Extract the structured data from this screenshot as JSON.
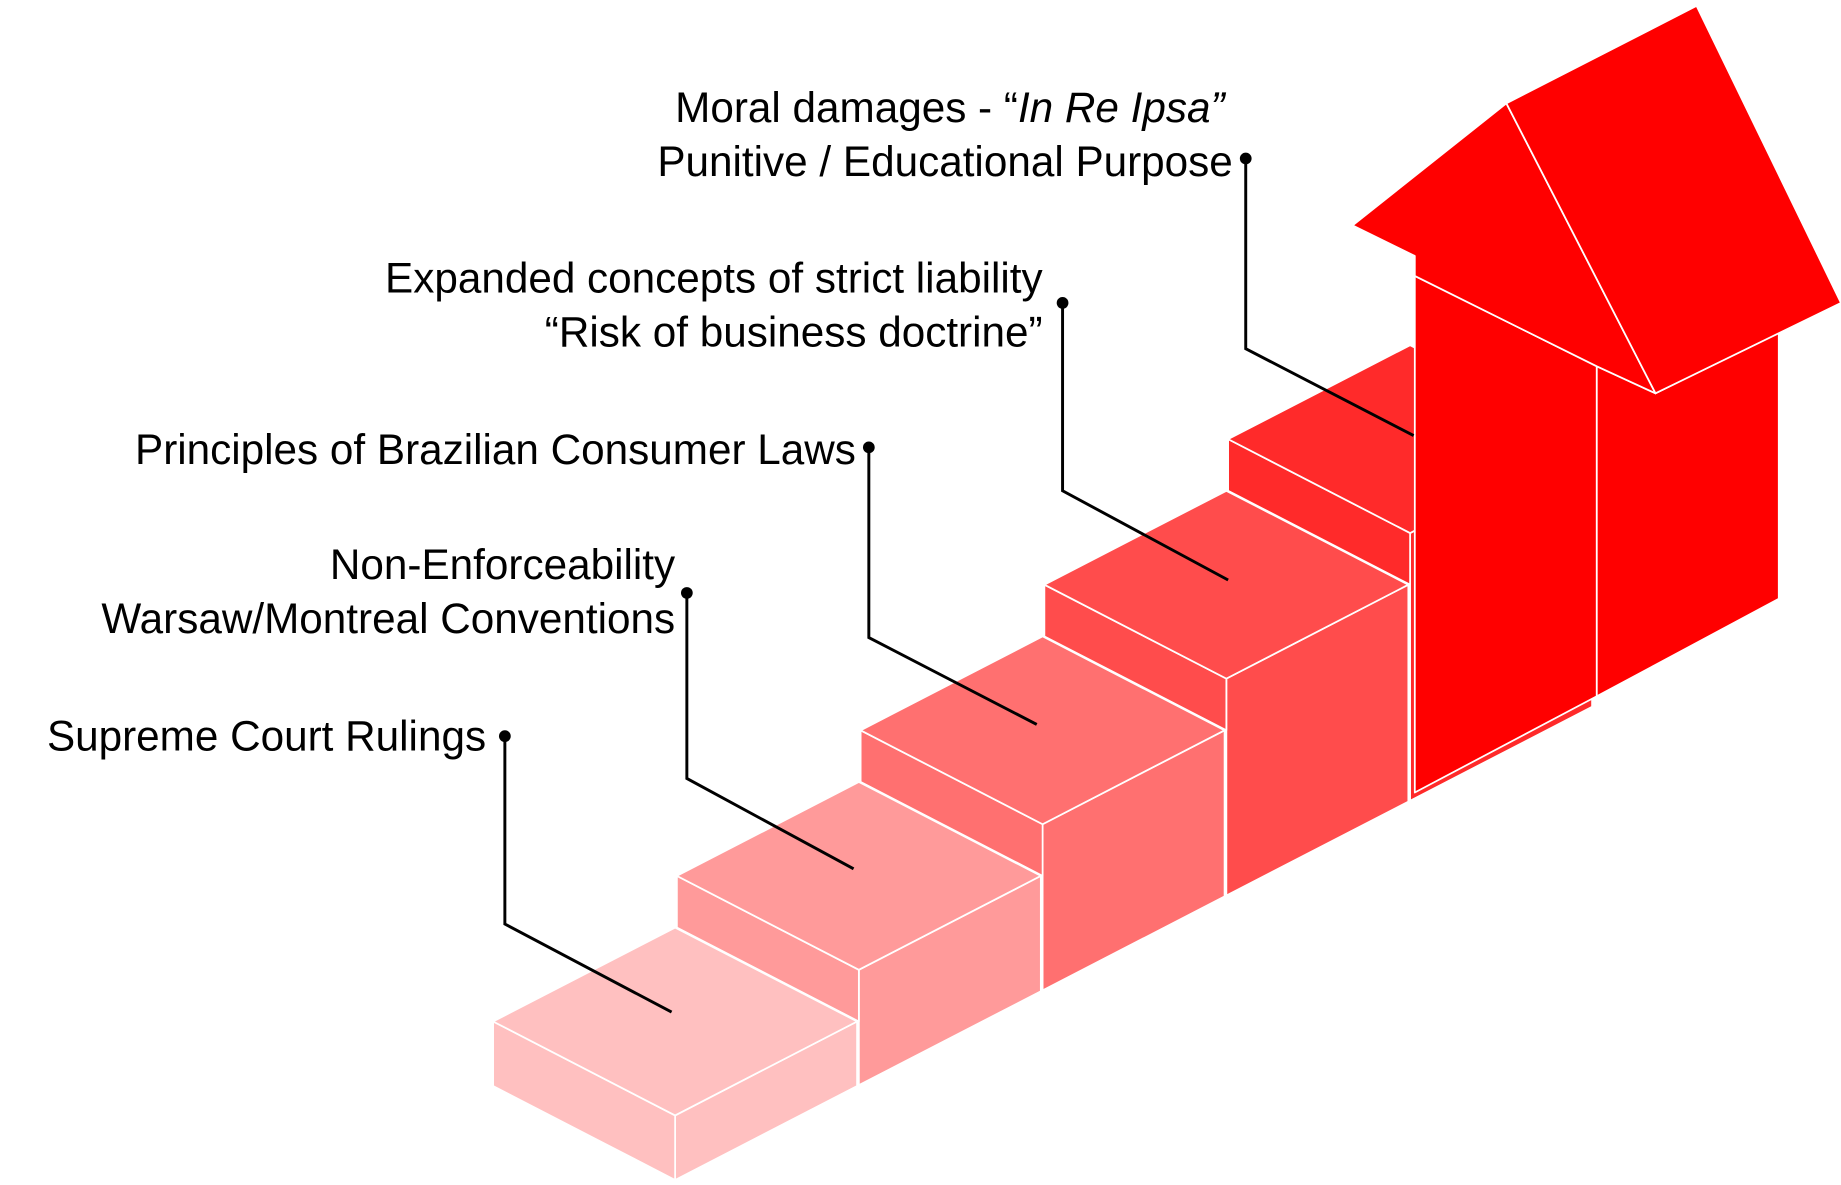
{
  "labels": [
    {
      "lines": [
        "Supreme Court Rulings"
      ]
    },
    {
      "lines": [
        "Non-Enforceability",
        "Warsaw/Montreal Conventions"
      ]
    },
    {
      "lines": [
        "Principles of Brazilian Consumer Laws"
      ]
    },
    {
      "lines": [
        "Expanded concepts of strict liability",
        "“Risk of business doctrine”"
      ]
    },
    {
      "lead": "Moral damages - “",
      "italic": "In Re Ipsa”",
      "lines": [
        "Punitive / Educational Purpose"
      ]
    }
  ]
}
